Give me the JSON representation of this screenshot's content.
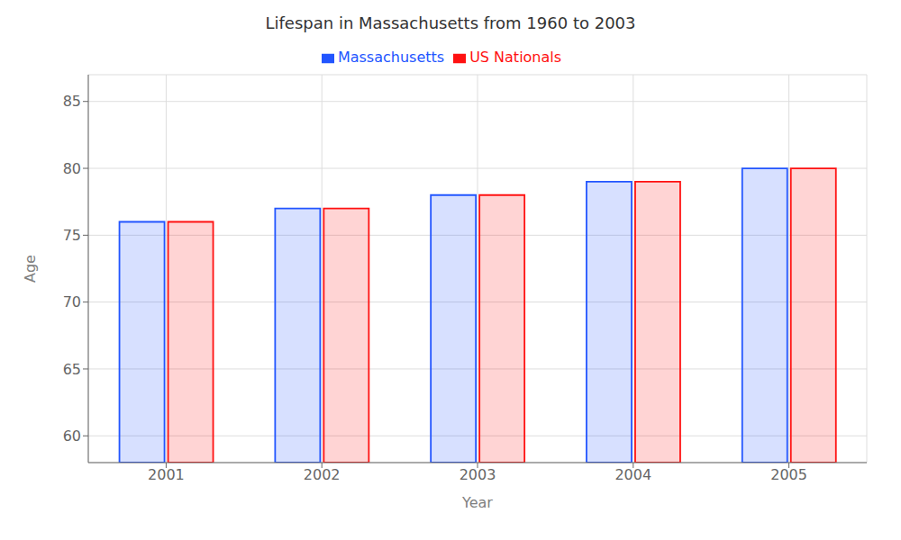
{
  "chart_data": {
    "type": "bar",
    "title": "Lifespan in Massachusetts from 1960 to 2003",
    "x_label": "Year",
    "y_label": "Age",
    "categories": [
      "2001",
      "2002",
      "2003",
      "2004",
      "2005"
    ],
    "series": [
      {
        "name": "Massachusetts",
        "color": "#2255ff",
        "values": [
          76,
          77,
          78,
          79,
          80
        ]
      },
      {
        "name": "US Nationals",
        "color": "#ff1111",
        "values": [
          76,
          77,
          78,
          79,
          80
        ]
      }
    ],
    "ylim": [
      58,
      87
    ],
    "yticks": [
      60,
      65,
      70,
      75,
      80,
      85
    ],
    "grid": true,
    "legend": "top"
  }
}
